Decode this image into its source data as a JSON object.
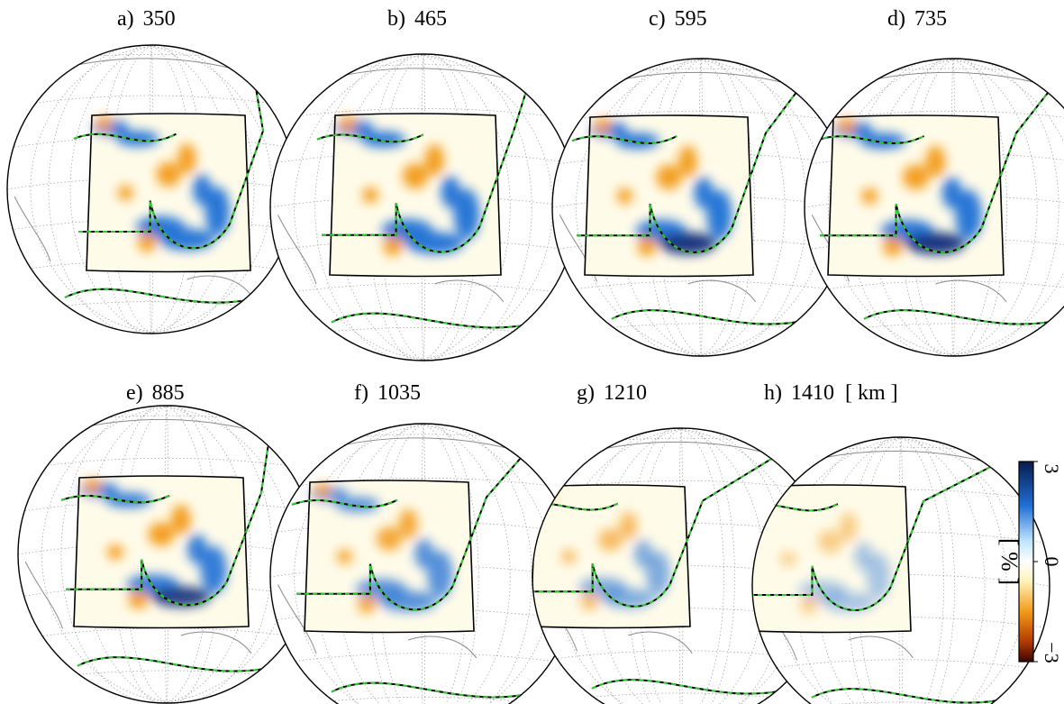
{
  "panels": [
    {
      "id": "a",
      "label": "a)",
      "depth": "350"
    },
    {
      "id": "b",
      "label": "b)",
      "depth": "465"
    },
    {
      "id": "c",
      "label": "c)",
      "depth": "595"
    },
    {
      "id": "d",
      "label": "d)",
      "depth": "735"
    },
    {
      "id": "e",
      "label": "e)",
      "depth": "885"
    },
    {
      "id": "f",
      "label": "f)",
      "depth": "1035"
    },
    {
      "id": "g",
      "label": "g)",
      "depth": "1210"
    },
    {
      "id": "h",
      "label": "h)",
      "depth": "1410",
      "unit": "[ km ]"
    }
  ],
  "colorbar": {
    "max_label": "3",
    "mid_label": "0",
    "min_label": "−3",
    "unit_label": "[ % ]",
    "colors": {
      "top": "#071b4d",
      "upper": "#1f6fd6",
      "light_blue": "#bfe6ff",
      "white": "#ffffff",
      "light_yellow": "#fff1b8",
      "orange": "#f39a18",
      "lower": "#b33a00",
      "bottom": "#3a0500"
    }
  },
  "colors": {
    "fast": "#1f6fd6",
    "slow": "#f39a18",
    "plate_boundary_outer": "#000000",
    "plate_boundary_inner": "#2ecc2e",
    "coastline": "#8a8a8a",
    "graticule": "#9a9a9a",
    "frame": "#000000"
  }
}
